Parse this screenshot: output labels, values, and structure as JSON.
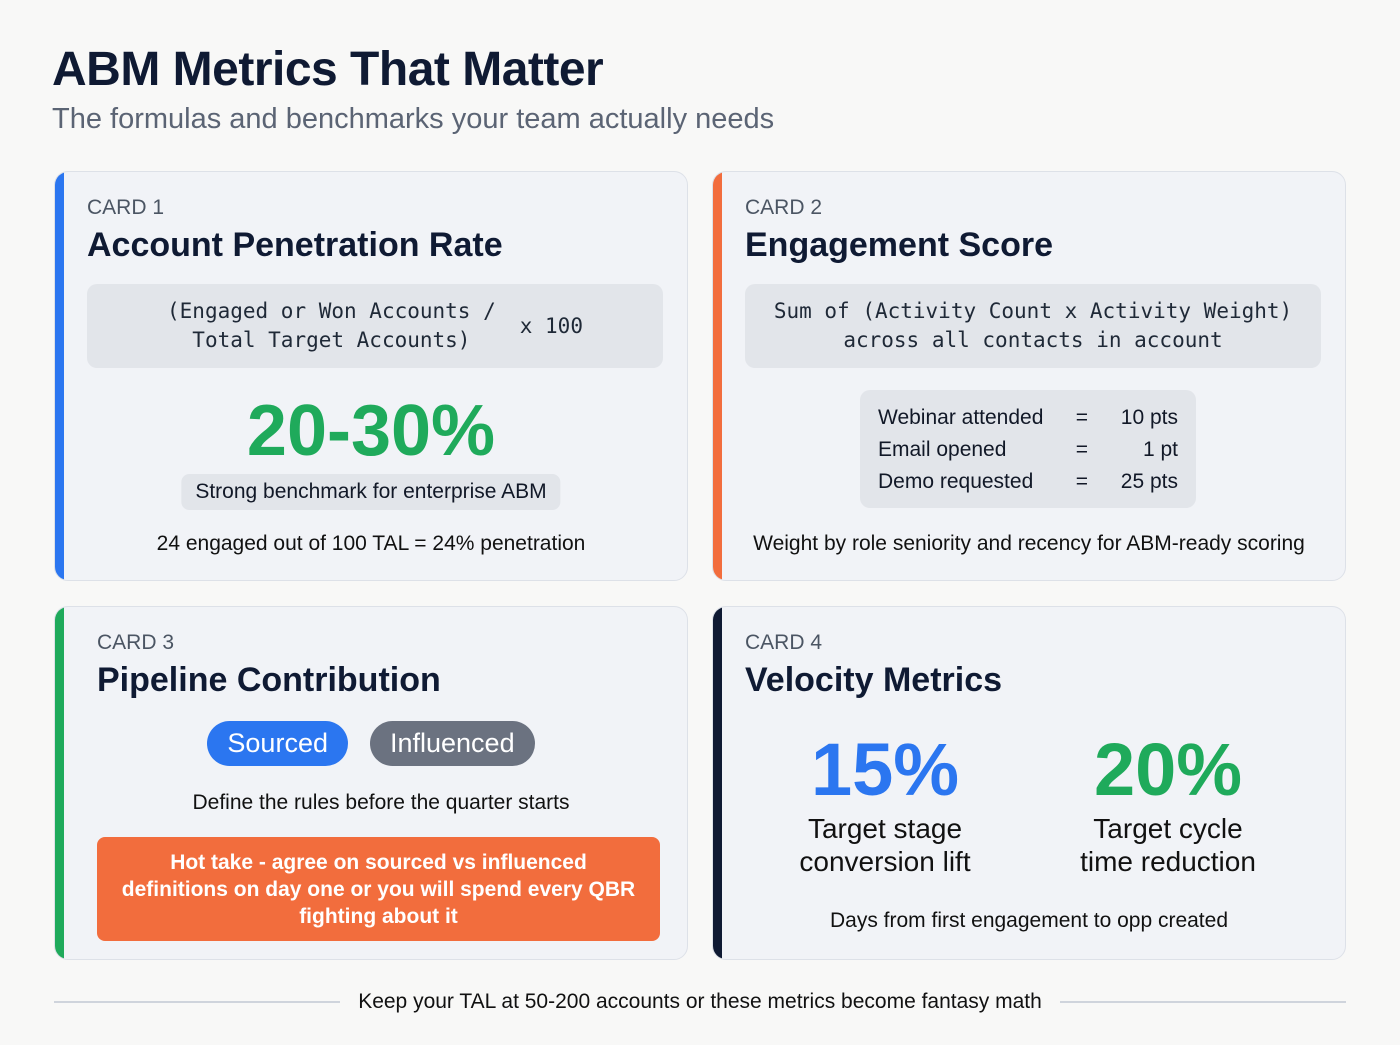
{
  "header": {
    "title": "ABM Metrics That Matter",
    "subtitle": "The formulas and benchmarks your team actually needs"
  },
  "colors": {
    "blue": "#2b76f0",
    "orange": "#f26d3d",
    "green": "#1faa5b",
    "navy": "#0f1a33",
    "gray": "#6b7280"
  },
  "card1": {
    "kicker": "CARD 1",
    "title": "Account Penetration Rate",
    "formula_line1": "(Engaged or Won Accounts /",
    "formula_line2": "Total Target Accounts)",
    "formula_mult": "x 100",
    "benchmark": "20-30%",
    "benchmark_label": "Strong benchmark for enterprise ABM",
    "example": "24 engaged out of 100 TAL = 24% penetration"
  },
  "card2": {
    "kicker": "CARD 2",
    "title": "Engagement Score",
    "formula_line1": "Sum of (Activity Count x Activity Weight)",
    "formula_line2": "across all contacts in account",
    "weights": [
      {
        "activity": "Webinar attended",
        "eq": "=",
        "points": "10 pts"
      },
      {
        "activity": "Email opened",
        "eq": "=",
        "points": "1 pt"
      },
      {
        "activity": "Demo requested",
        "eq": "=",
        "points": "25 pts"
      }
    ],
    "note": "Weight by role seniority and recency for ABM-ready scoring"
  },
  "card3": {
    "kicker": "CARD 3",
    "title": "Pipeline Contribution",
    "tag_sourced": "Sourced",
    "tag_influenced": "Influenced",
    "note": "Define the rules before the quarter starts",
    "hot_take": "Hot take - agree on sourced vs influenced definitions on day one or you will spend every QBR fighting about it"
  },
  "card4": {
    "kicker": "CARD 4",
    "title": "Velocity Metrics",
    "metric1_value": "15%",
    "metric1_label_1": "Target stage",
    "metric1_label_2": "conversion lift",
    "metric2_value": "20%",
    "metric2_label_1": "Target cycle",
    "metric2_label_2": "time reduction",
    "note": "Days from first engagement to opp created"
  },
  "footer": {
    "text": "Keep your TAL at 50-200 accounts or these metrics become fantasy math"
  }
}
